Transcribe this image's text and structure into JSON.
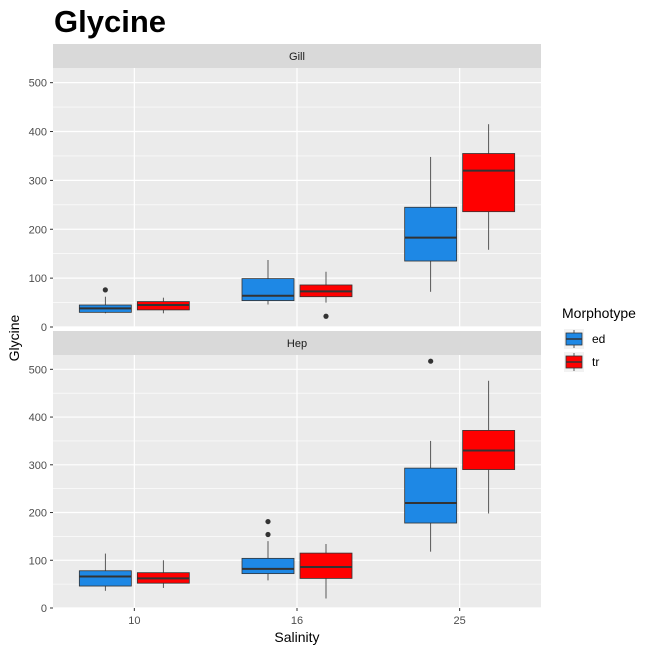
{
  "colors": {
    "ed": "#1E88E5",
    "tr": "#FF0000"
  },
  "chart_data": {
    "type": "boxplot",
    "title": "Glycine",
    "xlabel": "Salinity",
    "ylabel": "Glycine",
    "categories": [
      "10",
      "16",
      "25"
    ],
    "yticks": [
      0,
      100,
      200,
      300,
      400,
      500
    ],
    "ylim": [
      0,
      530
    ],
    "legend": {
      "title": "Morphotype",
      "position": "right",
      "entries": [
        "ed",
        "tr"
      ]
    },
    "grid": true,
    "panels": [
      {
        "name": "Gill",
        "series": [
          {
            "name": "ed",
            "boxes": [
              {
                "x": "10",
                "whisker_low": 28,
                "q1": 30,
                "median": 38,
                "q3": 45,
                "whisker_high": 62,
                "outliers": [
                  76
                ]
              },
              {
                "x": "16",
                "whisker_low": 46,
                "q1": 54,
                "median": 64,
                "q3": 99,
                "whisker_high": 137,
                "outliers": []
              },
              {
                "x": "25",
                "whisker_low": 72,
                "q1": 135,
                "median": 183,
                "q3": 245,
                "whisker_high": 348,
                "outliers": []
              }
            ]
          },
          {
            "name": "tr",
            "boxes": [
              {
                "x": "10",
                "whisker_low": 28,
                "q1": 35,
                "median": 45,
                "q3": 52,
                "whisker_high": 60,
                "outliers": []
              },
              {
                "x": "16",
                "whisker_low": 50,
                "q1": 62,
                "median": 73,
                "q3": 86,
                "whisker_high": 113,
                "outliers": [
                  22
                ]
              },
              {
                "x": "25",
                "whisker_low": 158,
                "q1": 236,
                "median": 320,
                "q3": 355,
                "whisker_high": 415,
                "outliers": []
              }
            ]
          }
        ]
      },
      {
        "name": "Hep",
        "series": [
          {
            "name": "ed",
            "boxes": [
              {
                "x": "10",
                "whisker_low": 36,
                "q1": 46,
                "median": 66,
                "q3": 78,
                "whisker_high": 114,
                "outliers": []
              },
              {
                "x": "16",
                "whisker_low": 58,
                "q1": 72,
                "median": 82,
                "q3": 104,
                "whisker_high": 140,
                "outliers": [
                  154,
                  181
                ]
              },
              {
                "x": "25",
                "whisker_low": 118,
                "q1": 178,
                "median": 220,
                "q3": 293,
                "whisker_high": 350,
                "outliers": [
                  517
                ]
              }
            ]
          },
          {
            "name": "tr",
            "boxes": [
              {
                "x": "10",
                "whisker_low": 42,
                "q1": 52,
                "median": 62,
                "q3": 74,
                "whisker_high": 100,
                "outliers": []
              },
              {
                "x": "16",
                "whisker_low": 20,
                "q1": 62,
                "median": 86,
                "q3": 115,
                "whisker_high": 134,
                "outliers": []
              },
              {
                "x": "25",
                "whisker_low": 198,
                "q1": 290,
                "median": 330,
                "q3": 372,
                "whisker_high": 476,
                "outliers": []
              }
            ]
          }
        ]
      }
    ]
  }
}
